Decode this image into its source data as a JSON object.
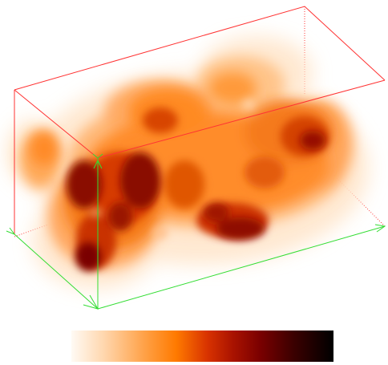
{
  "scene": {
    "box_edge_color": "#ff3333",
    "axis_color": "#33dd33",
    "background": "#ffffff"
  },
  "colormap": {
    "name": "gist_heat_r",
    "stops": [
      "#fff8f0",
      "#ffd2a0",
      "#ff8a1e",
      "#ee5500",
      "#c41a00",
      "#8a0000",
      "#3a0000",
      "#000000"
    ]
  },
  "icons": {
    "axis_arrow": "arrow-icon"
  }
}
